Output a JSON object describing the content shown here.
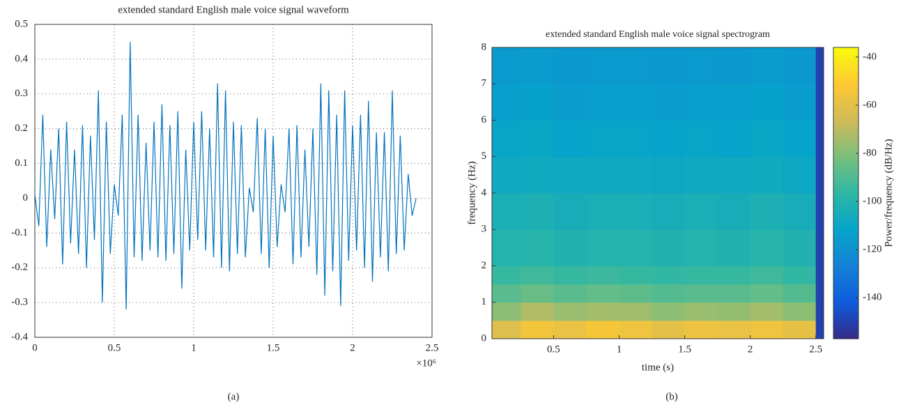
{
  "chart_data": [
    {
      "type": "line",
      "title": "extended standard English male voice signal waveform",
      "caption": "(a)",
      "x_multiplier": "×10⁶",
      "color": "#0072bd",
      "grid": true,
      "x": [
        0,
        25000,
        50000,
        75000,
        100000,
        125000,
        150000,
        175000,
        200000,
        225000,
        250000,
        275000,
        300000,
        325000,
        350000,
        375000,
        400000,
        425000,
        450000,
        475000,
        500000,
        525000,
        550000,
        575000,
        600000,
        625000,
        650000,
        675000,
        700000,
        725000,
        750000,
        775000,
        800000,
        825000,
        850000,
        875000,
        900000,
        925000,
        950000,
        975000,
        1000000,
        1025000,
        1050000,
        1075000,
        1100000,
        1125000,
        1150000,
        1175000,
        1200000,
        1225000,
        1250000,
        1275000,
        1300000,
        1325000,
        1350000,
        1375000,
        1400000,
        1425000,
        1450000,
        1475000,
        1500000,
        1525000,
        1550000,
        1575000,
        1600000,
        1625000,
        1650000,
        1675000,
        1700000,
        1725000,
        1750000,
        1775000,
        1800000,
        1825000,
        1850000,
        1875000,
        1900000,
        1925000,
        1950000,
        1975000,
        2000000,
        2025000,
        2050000,
        2075000,
        2100000,
        2125000,
        2150000,
        2175000,
        2200000,
        2225000,
        2250000,
        2275000,
        2300000,
        2325000,
        2350000,
        2375000,
        2400000
      ],
      "values": [
        0.01,
        -0.08,
        0.24,
        -0.14,
        0.14,
        -0.06,
        0.2,
        -0.19,
        0.22,
        -0.13,
        0.14,
        -0.16,
        0.21,
        -0.2,
        0.18,
        -0.12,
        0.31,
        -0.3,
        0.22,
        -0.16,
        0.04,
        -0.05,
        0.24,
        -0.32,
        0.45,
        -0.17,
        0.24,
        -0.18,
        0.16,
        -0.15,
        0.22,
        -0.17,
        0.27,
        -0.18,
        0.21,
        -0.16,
        0.25,
        -0.26,
        0.14,
        -0.15,
        0.22,
        -0.12,
        0.25,
        -0.15,
        0.2,
        -0.17,
        0.33,
        -0.2,
        0.31,
        -0.21,
        0.22,
        -0.16,
        0.21,
        -0.17,
        0.03,
        -0.04,
        0.23,
        -0.16,
        0.2,
        -0.2,
        0.18,
        -0.14,
        0.04,
        -0.04,
        0.2,
        -0.19,
        0.21,
        -0.17,
        0.14,
        -0.14,
        0.2,
        -0.22,
        0.33,
        -0.28,
        0.31,
        -0.21,
        0.24,
        -0.31,
        0.31,
        -0.18,
        0.21,
        -0.15,
        0.24,
        -0.2,
        0.28,
        -0.24,
        0.19,
        -0.17,
        0.19,
        -0.21,
        0.31,
        -0.16,
        0.18,
        -0.15,
        0.07,
        -0.05,
        0.0
      ],
      "xlim": [
        0,
        2500000
      ],
      "xticks": [
        0,
        {
          "value": 500000,
          "label": "0.5"
        },
        {
          "value": 1000000,
          "label": "1"
        },
        {
          "value": 1500000,
          "label": "1.5"
        },
        {
          "value": 2000000,
          "label": "2"
        },
        {
          "value": 2500000,
          "label": "2.5"
        }
      ],
      "ylim": [
        -0.4,
        0.5
      ],
      "yticks": [
        -0.4,
        -0.3,
        -0.2,
        -0.1,
        0,
        0.1,
        0.2,
        0.3,
        0.4,
        0.5
      ]
    },
    {
      "type": "heatmap",
      "title": "extended standard English male voice signal spectrogram",
      "caption": "(b)",
      "x_label": "time (s)",
      "y_label": "frequency (Hz)",
      "z_label": "Power/frequency (dB/Hz)",
      "colormap": [
        "#352a87",
        "#0f5cdd",
        "#1481d6",
        "#06a4ca",
        "#2eb7a4",
        "#7abf7c",
        "#d1bb59",
        "#fec832",
        "#f9fb0e"
      ],
      "x_edges": [
        0.03,
        0.25,
        0.5,
        0.75,
        1,
        1.25,
        1.5,
        1.75,
        2,
        2.25,
        2.5,
        2.56
      ],
      "y_edges": [
        0,
        0.5,
        1,
        1.5,
        2,
        3,
        4,
        5,
        6,
        7,
        8
      ],
      "z": [
        [
          -62,
          -55,
          -58,
          -54,
          -56,
          -60,
          -57,
          -58,
          -56,
          -59,
          -150
        ],
        [
          -78,
          -72,
          -76,
          -74,
          -75,
          -78,
          -76,
          -77,
          -74,
          -78,
          -150
        ],
        [
          -88,
          -85,
          -88,
          -86,
          -87,
          -89,
          -88,
          -88,
          -86,
          -89,
          -150
        ],
        [
          -95,
          -93,
          -95,
          -94,
          -95,
          -96,
          -95,
          -95,
          -93,
          -96,
          -150
        ],
        [
          -100,
          -99,
          -101,
          -100,
          -100,
          -101,
          -100,
          -101,
          -99,
          -101,
          -150
        ],
        [
          -104,
          -103,
          -105,
          -104,
          -104,
          -105,
          -104,
          -105,
          -103,
          -105,
          -150
        ],
        [
          -108,
          -107,
          -108,
          -108,
          -108,
          -109,
          -108,
          -108,
          -107,
          -109,
          -150
        ],
        [
          -111,
          -110,
          -112,
          -111,
          -111,
          -112,
          -111,
          -112,
          -110,
          -112,
          -150
        ],
        [
          -114,
          -113,
          -115,
          -114,
          -114,
          -115,
          -114,
          -114,
          -113,
          -115,
          -150
        ],
        [
          -116,
          -115,
          -117,
          -116,
          -116,
          -117,
          -116,
          -117,
          -115,
          -117,
          -150
        ]
      ],
      "xlim": [
        0.03,
        2.56
      ],
      "xticks": [
        0.5,
        1,
        1.5,
        2,
        2.5
      ],
      "ylim": [
        0,
        8
      ],
      "yticks": [
        0,
        1,
        2,
        3,
        4,
        5,
        6,
        7,
        8
      ],
      "zlim": [
        -157,
        -36
      ],
      "zticks": [
        -140,
        -120,
        -100,
        -80,
        -60,
        -40
      ]
    }
  ]
}
